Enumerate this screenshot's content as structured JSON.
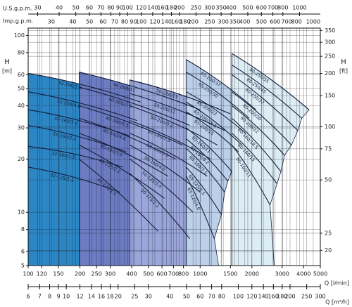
{
  "chart_data": {
    "type": "pump-chart",
    "x_title": "Q [l/min]",
    "x2_title": "Q [m³/h]",
    "x3_title": "U.S.g.p.m.",
    "x4_title": "Imp.g.p.m.",
    "y_title": "H",
    "y_unit": "[m]",
    "y2_title": "H",
    "y2_unit": "[ft]",
    "log_x": true,
    "log_y": true,
    "grid": true,
    "xlim": [
      100,
      5000
    ],
    "xticks": [
      100,
      120,
      150,
      200,
      250,
      300,
      400,
      500,
      600,
      700,
      800,
      1000,
      1500,
      2000,
      3000,
      4000,
      5000
    ],
    "x2lim": [
      6,
      300
    ],
    "x2ticks": [
      6,
      7,
      8,
      9,
      10,
      12,
      14,
      16,
      18,
      20,
      25,
      30,
      40,
      50,
      60,
      70,
      80,
      100,
      120,
      140,
      160,
      180,
      200,
      250,
      300
    ],
    "x3lim": [
      26.42,
      1320.9
    ],
    "x3ticks": [
      30,
      40,
      50,
      60,
      70,
      80,
      90,
      100,
      120,
      140,
      160,
      180,
      200,
      250,
      300,
      350,
      400,
      500,
      600,
      700,
      800,
      1000
    ],
    "x4lim": [
      22,
      1099.8
    ],
    "x4ticks": [
      30,
      40,
      50,
      60,
      70,
      80,
      90,
      100,
      120,
      140,
      160,
      180,
      200,
      250,
      300,
      350,
      400,
      500,
      600,
      700,
      800,
      1000
    ],
    "ylim": [
      5,
      110
    ],
    "yticks": [
      5,
      6,
      8,
      10,
      20,
      30,
      40,
      50,
      60,
      80,
      100
    ],
    "y2lim": [
      16.4,
      360.9
    ],
    "y2ticks": [
      20,
      25,
      50,
      75,
      100,
      150,
      200,
      250,
      300,
      350
    ],
    "groups": [
      {
        "color": "#2c86c4",
        "series": [
          {
            "name": "32-200/5.5",
            "x": [
              100,
              450
            ],
            "values": [
              61,
              42
            ]
          },
          {
            "name": "32-200/4.0",
            "x": [
              100,
              430
            ],
            "values": [
              48,
              33
            ]
          },
          {
            "name": "32-160/3.0",
            "x": [
              100,
              390
            ],
            "values": [
              38,
              27
            ]
          },
          {
            "name": "32-160/2.2",
            "x": [
              100,
              370
            ],
            "values": [
              31,
              22
            ]
          },
          {
            "name": "32-160/1.5",
            "x": [
              100,
              355
            ],
            "values": [
              23.6,
              18
            ]
          },
          {
            "name": "32-125/1.1",
            "x": [
              100,
              340
            ],
            "values": [
              18,
              13
            ]
          }
        ]
      },
      {
        "color": "#6c7cc2",
        "series": [
          {
            "name": "40-200/11",
            "x": [
              198,
              1000
            ],
            "values": [
              62,
              38
            ]
          },
          {
            "name": "40-200/7.5",
            "x": [
              198,
              870
            ],
            "values": [
              51,
              31
            ]
          },
          {
            "name": "40-160/5.5",
            "x": [
              198,
              790
            ],
            "values": [
              40,
              24
            ]
          },
          {
            "name": "40-160/4.0",
            "x": [
              198,
              720
            ],
            "values": [
              34,
              20
            ]
          },
          {
            "name": "40-160/3.0",
            "x": [
              198,
              650
            ],
            "values": [
              28,
              16
            ]
          },
          {
            "name": "40-125/2.2",
            "x": [
              198,
              620
            ],
            "values": [
              24,
              12
            ]
          },
          {
            "name": "40-125/1.5",
            "x": [
              198,
              570
            ],
            "values": [
              20,
              7.8
            ]
          }
        ]
      },
      {
        "color": "#9aa6da",
        "series": [
          {
            "name": "50-200/15",
            "x": [
              390,
              1500
            ],
            "values": [
              56,
              36
            ]
          },
          {
            "name": "50-200/11",
            "x": [
              390,
              1390
            ],
            "values": [
              47,
              29
            ]
          },
          {
            "name": "50-200/9.2",
            "x": [
              390,
              1260
            ],
            "values": [
              40,
              24
            ]
          },
          {
            "name": "50-160/7.5",
            "x": [
              390,
              1150
            ],
            "values": [
              33,
              20
            ]
          },
          {
            "name": "50-160/5.5",
            "x": [
              390,
              1100
            ],
            "values": [
              28,
              16
            ]
          },
          {
            "name": "50-160/4.0",
            "x": [
              390,
              1000
            ],
            "values": [
              24,
              13
            ]
          },
          {
            "name": "50-125/3.0",
            "x": [
              390,
              910
            ],
            "values": [
              20,
              10
            ]
          },
          {
            "name": "50-125/2.2",
            "x": [
              390,
              870
            ],
            "values": [
              16.6,
              7.1
            ]
          }
        ]
      },
      {
        "color": "#bcd0ea",
        "series": [
          {
            "name": "65-250/37",
            "x": [
              830,
              2110
            ],
            "values": [
              73,
              38
            ]
          },
          {
            "name": "65-250/30",
            "x": [
              830,
              1930
            ],
            "values": [
              62,
              34
            ]
          },
          {
            "name": "65-200/22",
            "x": [
              830,
              1840
            ],
            "values": [
              48,
              28
            ]
          },
          {
            "name": "65-200/18.5",
            "x": [
              830,
              1750
            ],
            "values": [
              42,
              24
            ]
          },
          {
            "name": "65-200/15",
            "x": [
              830,
              1670
            ],
            "values": [
              37,
              22
            ]
          },
          {
            "name": "65-160/11",
            "x": [
              830,
              1530
            ],
            "values": [
              30,
              17
            ]
          },
          {
            "name": "65-160/9.2",
            "x": [
              830,
              1450
            ],
            "values": [
              26,
              15
            ]
          },
          {
            "name": "65-160/7.5",
            "x": [
              830,
              1390
            ],
            "values": [
              23,
              13
            ]
          },
          {
            "name": "65-125/5.5",
            "x": [
              830,
              1330
            ],
            "values": [
              18,
              9.7
            ]
          },
          {
            "name": "65-125/4.0",
            "x": [
              830,
              1210
            ],
            "values": [
              16,
              7.1
            ]
          }
        ]
      },
      {
        "color": "#dcedf4",
        "series": [
          {
            "name": "80-250/55",
            "x": [
              1530,
              4300
            ],
            "values": [
              79,
              38
            ]
          },
          {
            "name": "80-250/45",
            "x": [
              1530,
              3900
            ],
            "values": [
              68,
              34
            ]
          },
          {
            "name": "80-250/37",
            "x": [
              1530,
              3700
            ],
            "values": [
              60,
              29
            ]
          },
          {
            "name": "80-200/30",
            "x": [
              1530,
              3400
            ],
            "values": [
              48,
              24
            ]
          },
          {
            "name": "80-200/22",
            "x": [
              1530,
              3100
            ],
            "values": [
              40,
              21
            ]
          },
          {
            "name": "80-160/18.5",
            "x": [
              1530,
              2950
            ],
            "values": [
              34,
              17
            ]
          },
          {
            "name": "80-160/15",
            "x": [
              1530,
              2800
            ],
            "values": [
              28,
              14.5
            ]
          },
          {
            "name": "80-160/11",
            "x": [
              1530,
              2550
            ],
            "values": [
              24,
              11
            ]
          }
        ]
      }
    ]
  }
}
